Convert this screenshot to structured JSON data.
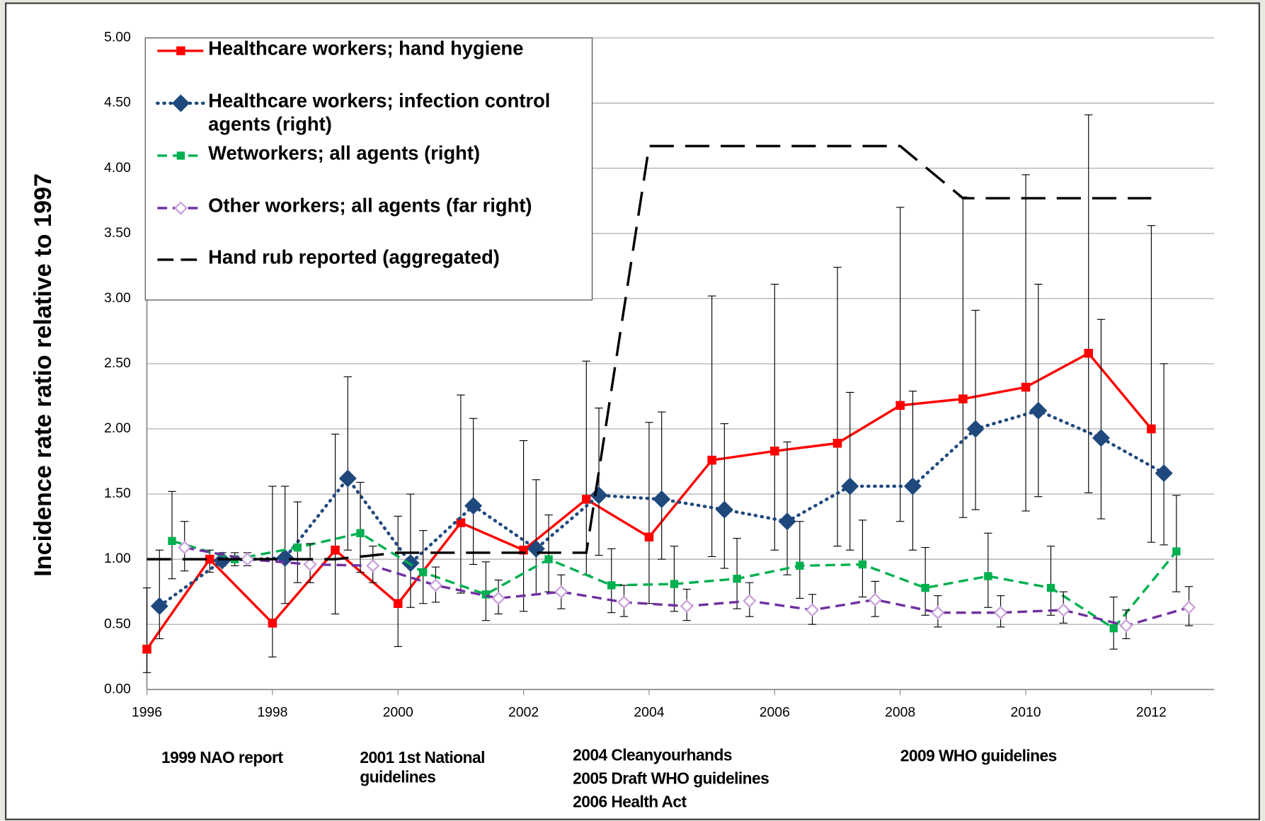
{
  "chart_data": {
    "type": "line",
    "y_label": "Incidence rate ratio relative to 1997",
    "xlim": [
      1996,
      2013
    ],
    "xticks": [
      1996,
      1998,
      2000,
      2002,
      2004,
      2006,
      2008,
      2010,
      2012
    ],
    "ylim": [
      0,
      5
    ],
    "yticks": [
      {
        "value": 0,
        "label": "0.00"
      },
      {
        "value": 0.5,
        "label": "0.50"
      },
      {
        "value": 1,
        "label": "1.00"
      },
      {
        "value": 1.5,
        "label": "1.50"
      },
      {
        "value": 2,
        "label": "2.00"
      },
      {
        "value": 2.5,
        "label": "2.50"
      },
      {
        "value": 3,
        "label": "3.00"
      },
      {
        "value": 3.5,
        "label": "3.50"
      },
      {
        "value": 4,
        "label": "4.00"
      },
      {
        "value": 4.5,
        "label": "4.50"
      },
      {
        "value": 5,
        "label": "5.00"
      }
    ],
    "grid": true,
    "legend": "upper left",
    "series": [
      {
        "name": "Healthcare workers; hand hygiene",
        "color": "#ff0000",
        "marker": "square",
        "dash": "solid",
        "x": [
          1996,
          1997,
          1998,
          1999,
          2000,
          2001,
          2002,
          2003,
          2004,
          2005,
          2006,
          2007,
          2008,
          2009,
          2010,
          2011,
          2012
        ],
        "values": [
          0.31,
          1.0,
          0.51,
          1.07,
          0.66,
          1.28,
          1.07,
          1.46,
          1.17,
          1.76,
          1.83,
          1.89,
          2.18,
          2.23,
          2.32,
          2.58,
          2.0
        ],
        "error_low": [
          0.13,
          0.9,
          0.25,
          0.58,
          0.33,
          0.74,
          0.6,
          0.88,
          0.66,
          1.02,
          1.07,
          1.1,
          1.29,
          1.32,
          1.37,
          1.51,
          1.13
        ],
        "error_high": [
          0.78,
          1.07,
          1.56,
          1.96,
          1.33,
          2.26,
          1.91,
          2.52,
          2.05,
          3.02,
          3.11,
          3.24,
          3.7,
          3.78,
          3.95,
          4.41,
          3.56
        ]
      },
      {
        "name": "Healthcare workers; infection control agents (right)",
        "color": "#1f497d",
        "marker": "diamond",
        "dash": "dotted",
        "x": [
          1996.2,
          1997.2,
          1998.2,
          1999.2,
          2000.2,
          2001.2,
          2002.2,
          2003.2,
          2004.2,
          2005.2,
          2006.2,
          2007.2,
          2008.2,
          2009.2,
          2010.2,
          2011.2,
          2012.2
        ],
        "values": [
          0.64,
          0.99,
          1.01,
          1.62,
          0.97,
          1.41,
          1.08,
          1.49,
          1.46,
          1.38,
          1.29,
          1.56,
          1.56,
          2.0,
          2.14,
          1.93,
          1.66
        ],
        "error_low": [
          0.39,
          0.95,
          0.66,
          1.07,
          0.63,
          0.96,
          0.73,
          1.03,
          1.0,
          0.93,
          0.88,
          1.07,
          1.07,
          1.38,
          1.48,
          1.31,
          1.11
        ],
        "error_high": [
          1.07,
          1.05,
          1.56,
          2.4,
          1.5,
          2.08,
          1.61,
          2.16,
          2.13,
          2.04,
          1.9,
          2.28,
          2.29,
          2.91,
          3.11,
          2.84,
          2.5
        ]
      },
      {
        "name": "Wetworkers; all agents (right)",
        "color": "#00b050",
        "marker": "square",
        "dash": "dashed",
        "x": [
          1996.4,
          1997.4,
          1998.4,
          1999.4,
          2000.4,
          2001.4,
          2002.4,
          2003.4,
          2004.4,
          2005.4,
          2006.4,
          2007.4,
          2008.4,
          2009.4,
          2010.4,
          2011.4,
          2012.4
        ],
        "values": [
          1.14,
          1.0,
          1.09,
          1.2,
          0.9,
          0.73,
          1.0,
          0.8,
          0.81,
          0.85,
          0.95,
          0.96,
          0.78,
          0.87,
          0.78,
          0.47,
          1.06
        ],
        "error_low": [
          0.85,
          0.95,
          0.82,
          0.9,
          0.66,
          0.53,
          0.75,
          0.59,
          0.6,
          0.62,
          0.7,
          0.71,
          0.57,
          0.63,
          0.57,
          0.31,
          0.75
        ],
        "error_high": [
          1.52,
          1.05,
          1.44,
          1.59,
          1.22,
          0.98,
          1.34,
          1.08,
          1.1,
          1.16,
          1.29,
          1.3,
          1.09,
          1.2,
          1.1,
          0.71,
          1.49
        ]
      },
      {
        "name": "Other workers; all agents (far right)",
        "color": "#7030a0",
        "marker": "open-diamond",
        "dash": "dashed",
        "x": [
          1996.6,
          1997.6,
          1998.6,
          1999.6,
          2000.6,
          2001.6,
          2002.6,
          2003.6,
          2004.6,
          2005.6,
          2006.6,
          2007.6,
          2008.6,
          2009.6,
          2010.6,
          2011.6,
          2012.6
        ],
        "values": [
          1.09,
          1.0,
          0.96,
          0.95,
          0.8,
          0.7,
          0.75,
          0.67,
          0.64,
          0.68,
          0.61,
          0.69,
          0.59,
          0.59,
          0.61,
          0.49,
          0.63
        ],
        "error_low": [
          0.91,
          0.95,
          0.82,
          0.82,
          0.67,
          0.58,
          0.62,
          0.56,
          0.53,
          0.56,
          0.5,
          0.56,
          0.48,
          0.48,
          0.51,
          0.39,
          0.49
        ],
        "error_high": [
          1.29,
          1.05,
          1.12,
          1.1,
          0.94,
          0.84,
          0.88,
          0.8,
          0.77,
          0.82,
          0.73,
          0.83,
          0.72,
          0.72,
          0.75,
          0.61,
          0.79
        ]
      },
      {
        "name": "Hand rub reported (aggregated)",
        "color": "#000000",
        "marker": "none",
        "dash": "long-dash",
        "x": [
          1996,
          1999,
          2000,
          2003,
          2004,
          2008,
          2009,
          2012
        ],
        "values": [
          1.0,
          1.0,
          1.05,
          1.05,
          4.17,
          4.17,
          3.77,
          3.77
        ]
      }
    ],
    "annotations": [
      "1999 NAO report",
      "2001 1st National guidelines",
      "2004 Cleanyourhands",
      "2005 Draft WHO guidelines",
      "2006 Health Act",
      "2009 WHO guidelines"
    ]
  }
}
